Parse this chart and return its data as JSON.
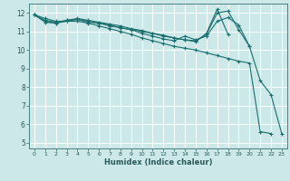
{
  "xlabel": "Humidex (Indice chaleur)",
  "bg_color": "#cce8e8",
  "grid_color": "#b0d4d4",
  "line_color": "#1a6e6e",
  "xlim": [
    -0.5,
    23.5
  ],
  "ylim": [
    4.7,
    12.5
  ],
  "xticks": [
    0,
    1,
    2,
    3,
    4,
    5,
    6,
    7,
    8,
    9,
    10,
    11,
    12,
    13,
    14,
    15,
    16,
    17,
    18,
    19,
    20,
    21,
    22,
    23
  ],
  "yticks": [
    5,
    6,
    7,
    8,
    9,
    10,
    11,
    12
  ],
  "series": [
    [
      11.9,
      11.7,
      11.55,
      11.55,
      11.55,
      11.45,
      11.3,
      11.15,
      11.0,
      10.85,
      10.65,
      10.5,
      10.35,
      10.2,
      10.1,
      10.0,
      9.85,
      9.7,
      9.55,
      9.4,
      9.3,
      5.6,
      5.5,
      null
    ],
    [
      11.9,
      11.6,
      11.5,
      11.6,
      11.65,
      11.55,
      11.45,
      11.35,
      11.2,
      11.1,
      10.9,
      10.75,
      10.6,
      10.5,
      10.75,
      10.55,
      10.75,
      11.55,
      11.75,
      11.35,
      10.2,
      8.35,
      7.6,
      5.5
    ],
    [
      11.9,
      11.55,
      11.45,
      11.6,
      11.7,
      11.6,
      11.5,
      11.4,
      11.3,
      11.15,
      11.05,
      10.9,
      10.8,
      10.65,
      10.55,
      10.5,
      10.85,
      12.0,
      12.1,
      11.1,
      10.2,
      null,
      null,
      null
    ],
    [
      11.9,
      11.5,
      11.45,
      11.55,
      11.65,
      11.5,
      11.45,
      11.3,
      11.2,
      11.1,
      11.0,
      10.9,
      10.75,
      10.65,
      10.55,
      10.45,
      10.9,
      12.2,
      10.85,
      null,
      null,
      null,
      null,
      null
    ]
  ]
}
